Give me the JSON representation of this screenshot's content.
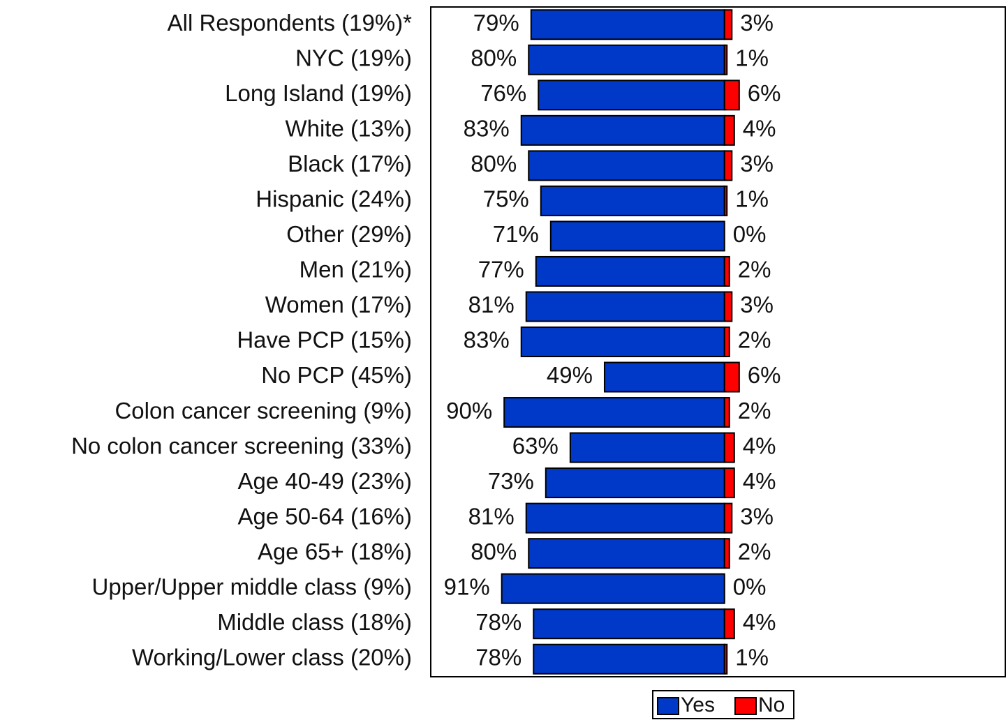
{
  "chart_data": {
    "type": "diverging_bar",
    "categories": [
      "All Respondents (19%)*",
      "NYC (19%)",
      "Long Island (19%)",
      "White (13%)",
      "Black (17%)",
      "Hispanic (24%)",
      "Other (29%)",
      "Men (21%)",
      "Women (17%)",
      "Have PCP (15%)",
      "No PCP (45%)",
      "Colon cancer screening (9%)",
      "No colon cancer screening (33%)",
      "Age 40-49 (23%)",
      "Age 50-64 (16%)",
      "Age 65+ (18%)",
      "Upper/Upper middle class (9%)",
      "Middle class (18%)",
      "Working/Lower class (20%)"
    ],
    "series": [
      {
        "name": "Yes",
        "color": "#0038c8",
        "direction": "left",
        "values": [
          79,
          80,
          76,
          83,
          80,
          75,
          71,
          77,
          81,
          83,
          49,
          90,
          63,
          73,
          81,
          80,
          91,
          78,
          78
        ],
        "value_labels": [
          "79%",
          "80%",
          "76%",
          "83%",
          "80%",
          "75%",
          "71%",
          "77%",
          "81%",
          "83%",
          "49%",
          "90%",
          "63%",
          "73%",
          "81%",
          "80%",
          "91%",
          "78%",
          "78%"
        ]
      },
      {
        "name": "No",
        "color": "#ff0000",
        "direction": "right",
        "values": [
          3,
          1,
          6,
          4,
          3,
          1,
          0,
          2,
          3,
          2,
          6,
          2,
          4,
          4,
          3,
          2,
          0,
          4,
          1
        ],
        "value_labels": [
          "3%",
          "1%",
          "6%",
          "4%",
          "3%",
          "1%",
          "0%",
          "2%",
          "3%",
          "2%",
          "6%",
          "2%",
          "4%",
          "4%",
          "3%",
          "2%",
          "0%",
          "4%",
          "1%"
        ]
      }
    ],
    "xlim": [
      -120,
      115
    ],
    "legend": "bottom"
  }
}
